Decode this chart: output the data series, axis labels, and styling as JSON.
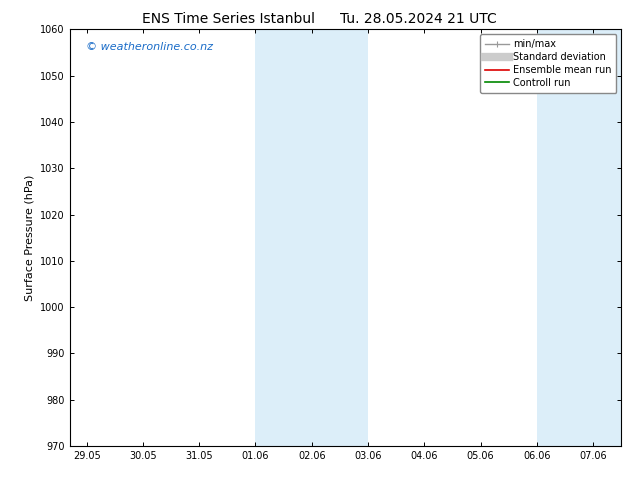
{
  "title_left": "ENS Time Series Istanbul",
  "title_right": "Tu. 28.05.2024 21 UTC",
  "ylabel": "Surface Pressure (hPa)",
  "ylim": [
    970,
    1060
  ],
  "yticks": [
    970,
    980,
    990,
    1000,
    1010,
    1020,
    1030,
    1040,
    1050,
    1060
  ],
  "xtick_labels": [
    "29.05",
    "30.05",
    "31.05",
    "01.06",
    "02.06",
    "03.06",
    "04.06",
    "05.06",
    "06.06",
    "07.06"
  ],
  "xtick_positions": [
    0,
    1,
    2,
    3,
    4,
    5,
    6,
    7,
    8,
    9
  ],
  "xlim": [
    -0.3,
    9.5
  ],
  "shaded_bands": [
    {
      "xmin": 3,
      "xmax": 5
    },
    {
      "xmin": 8,
      "xmax": 9.5
    }
  ],
  "band_color": "#dceef9",
  "watermark": "© weatheronline.co.nz",
  "watermark_color": "#1a6cc8",
  "legend_labels": [
    "min/max",
    "Standard deviation",
    "Ensemble mean run",
    "Controll run"
  ],
  "legend_colors": [
    "#999999",
    "#cccccc",
    "#dd0000",
    "#008800"
  ],
  "bg_color": "#ffffff",
  "spine_color": "#000000",
  "tick_color": "#000000",
  "title_fontsize": 10,
  "tick_fontsize": 7,
  "ylabel_fontsize": 8,
  "watermark_fontsize": 8,
  "legend_fontsize": 7
}
